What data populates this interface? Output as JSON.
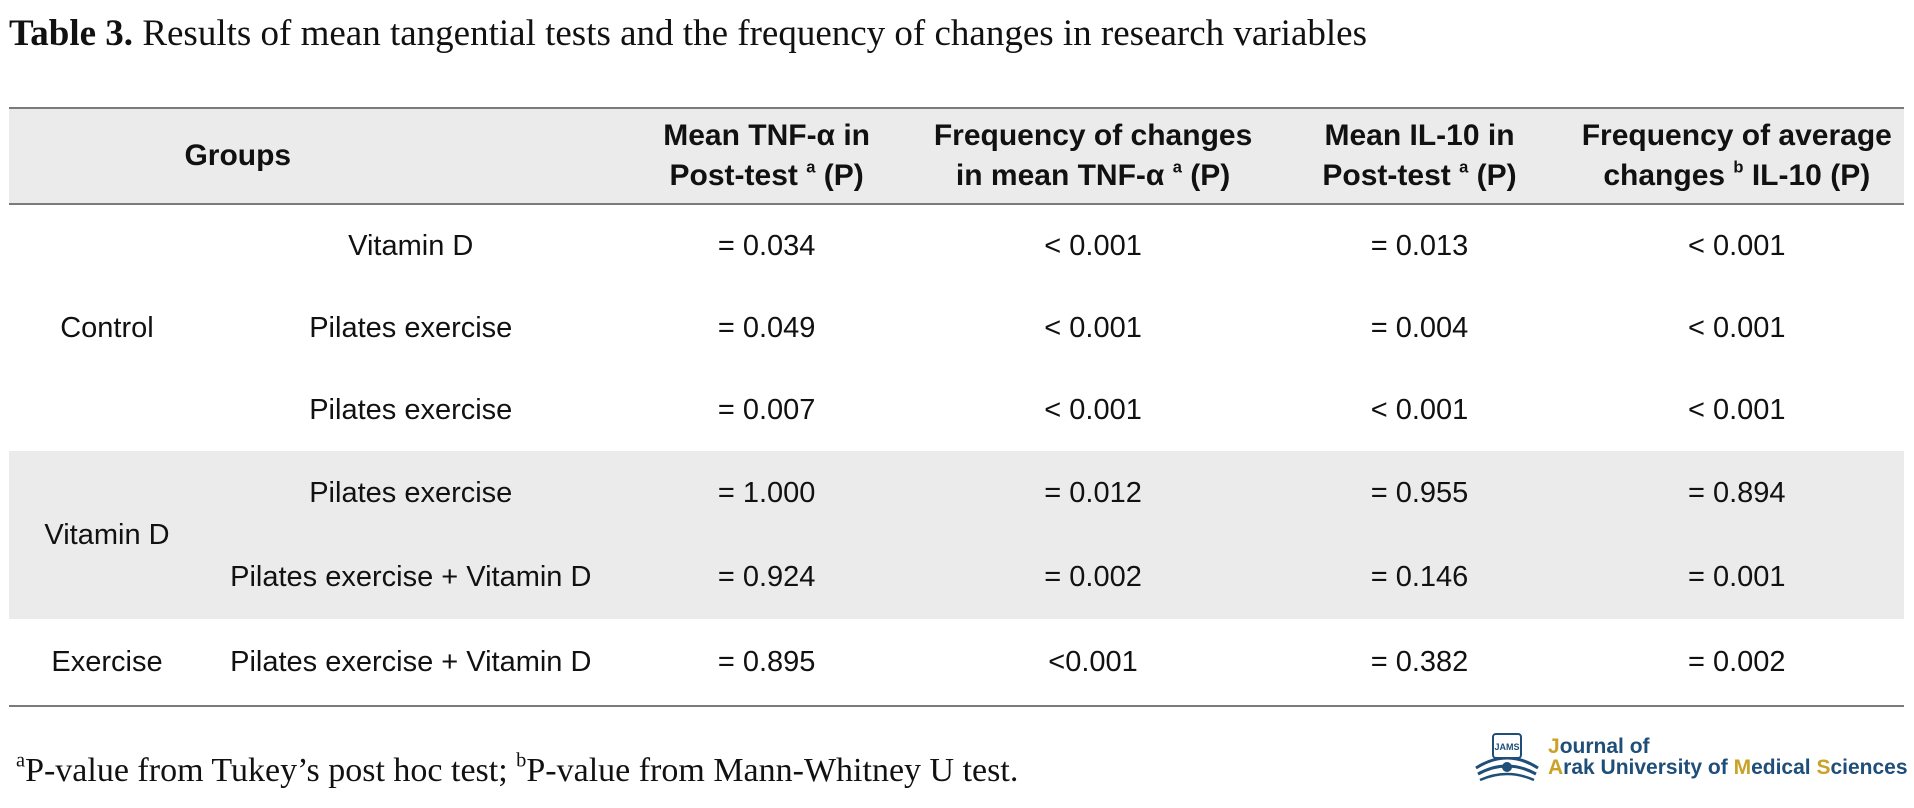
{
  "caption": {
    "label": "Table 3.",
    "text": " Results of mean tangential tests and the frequency of changes in research variables"
  },
  "table": {
    "headers": {
      "groups": "Groups",
      "col1": {
        "line1": "Mean TNF-α in",
        "line2a": "Post-test ",
        "sup": "a",
        "line2b": " (P)"
      },
      "col2": {
        "line1": "Frequency of changes",
        "line2a": "in mean TNF-α ",
        "sup": "a",
        "line2b": " (P)"
      },
      "col3": {
        "line1": "Mean IL-10 in",
        "line2a": "Post-test ",
        "sup": "a",
        "line2b": " (P)"
      },
      "col4": {
        "line1": "Frequency of average",
        "line2a": "changes ",
        "sup": "b",
        "line2b": " IL-10 (P)"
      }
    },
    "rows": [
      {
        "group": "Control",
        "comparison": "Vitamin D",
        "values": [
          "= 0.034",
          "< 0.001",
          "= 0.013",
          "< 0.001"
        ]
      },
      {
        "comparison": "Pilates exercise",
        "values": [
          "= 0.049",
          "< 0.001",
          "= 0.004",
          "< 0.001"
        ]
      },
      {
        "comparison": "Pilates exercise",
        "values": [
          "= 0.007",
          "< 0.001",
          "< 0.001",
          "< 0.001"
        ]
      },
      {
        "group": "Vitamin D",
        "comparison": "Pilates exercise",
        "values": [
          "= 1.000",
          "= 0.012",
          "= 0.955",
          "= 0.894"
        ]
      },
      {
        "comparison": "Pilates exercise + Vitamin D",
        "values": [
          "= 0.924",
          "= 0.002",
          "= 0.146",
          "= 0.001"
        ]
      },
      {
        "group": "Exercise",
        "comparison": "Pilates exercise + Vitamin D",
        "values": [
          "= 0.895",
          "<0.001",
          "= 0.382",
          "= 0.002"
        ]
      }
    ]
  },
  "footnote": {
    "sup_a": "a",
    "text_a": "P-value from Tukey’s post hoc test; ",
    "sup_b": "b",
    "text_b": "P-value from Mann-Whitney U test."
  },
  "logo": {
    "icon": "book-emblem-icon",
    "badge": "JAMS",
    "line1_j": "J",
    "line1_rest": "ournal of",
    "line2_a": "A",
    "line2_b": "rak University of ",
    "line2_m": "M",
    "line2_c": "edical ",
    "line2_s": "S",
    "line2_d": "ciences",
    "colors": {
      "primary": "#1f4e79",
      "accent": "#c9a227"
    }
  }
}
